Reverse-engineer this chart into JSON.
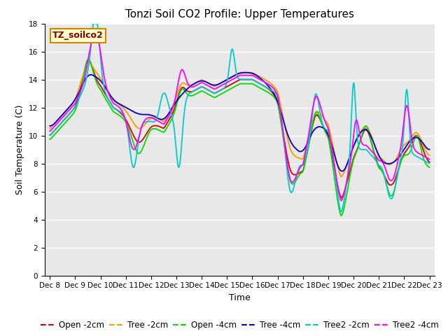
{
  "title": "Tonzi Soil CO2 Profile: Upper Temperatures",
  "xlabel": "Time",
  "ylabel": "Soil Temperature (C)",
  "ylim": [
    0,
    18
  ],
  "yticks": [
    0,
    2,
    4,
    6,
    8,
    10,
    12,
    14,
    16,
    18
  ],
  "annotation_text": "TZ_soilco2",
  "annotation_color": "#8b0000",
  "annotation_bg": "#ffffcc",
  "annotation_border": "#cc8800",
  "series_colors": {
    "Open -2cm": "#dd0000",
    "Tree -2cm": "#ff9900",
    "Open -4cm": "#00dd00",
    "Tree -4cm": "#0000cc",
    "Tree2 -2cm": "#00cccc",
    "Tree2 -4cm": "#ff00ff"
  },
  "bg_color": "#ffffff",
  "plot_bg_color": "#e8e8e8",
  "grid_color": "#ffffff",
  "title_fontsize": 11,
  "axis_label_fontsize": 9,
  "tick_fontsize": 7.5,
  "legend_fontsize": 8.5,
  "linewidth": 1.3
}
